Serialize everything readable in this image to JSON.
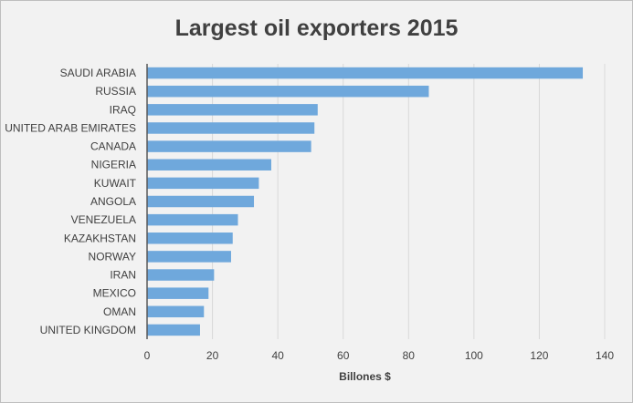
{
  "chart_data": {
    "type": "bar",
    "orientation": "horizontal",
    "title": "Largest oil exporters 2015",
    "xlabel": "Billones $",
    "ylabel": "",
    "categories": [
      "SAUDI ARABIA",
      "RUSSIA",
      "IRAQ",
      "UNITED ARAB EMIRATES",
      "CANADA",
      "NIGERIA",
      "KUWAIT",
      "ANGOLA",
      "VENEZUELA",
      "KAZAKHSTAN",
      "NORWAY",
      "IRAN",
      "MEXICO",
      "OMAN",
      "UNITED KINGDOM"
    ],
    "values": [
      133.3,
      86.2,
      52.2,
      51.2,
      50.2,
      38.0,
      34.2,
      32.7,
      27.8,
      26.2,
      25.7,
      20.5,
      18.8,
      17.4,
      16.2
    ],
    "xlim": [
      0,
      140
    ],
    "xticks": [
      0,
      20,
      40,
      60,
      80,
      100,
      120,
      140
    ],
    "grid": true,
    "colors": {
      "bar": "#6fa8dc",
      "grid": "#d9d9d9",
      "background": "#f2f2f2",
      "axis": "#595959"
    }
  }
}
